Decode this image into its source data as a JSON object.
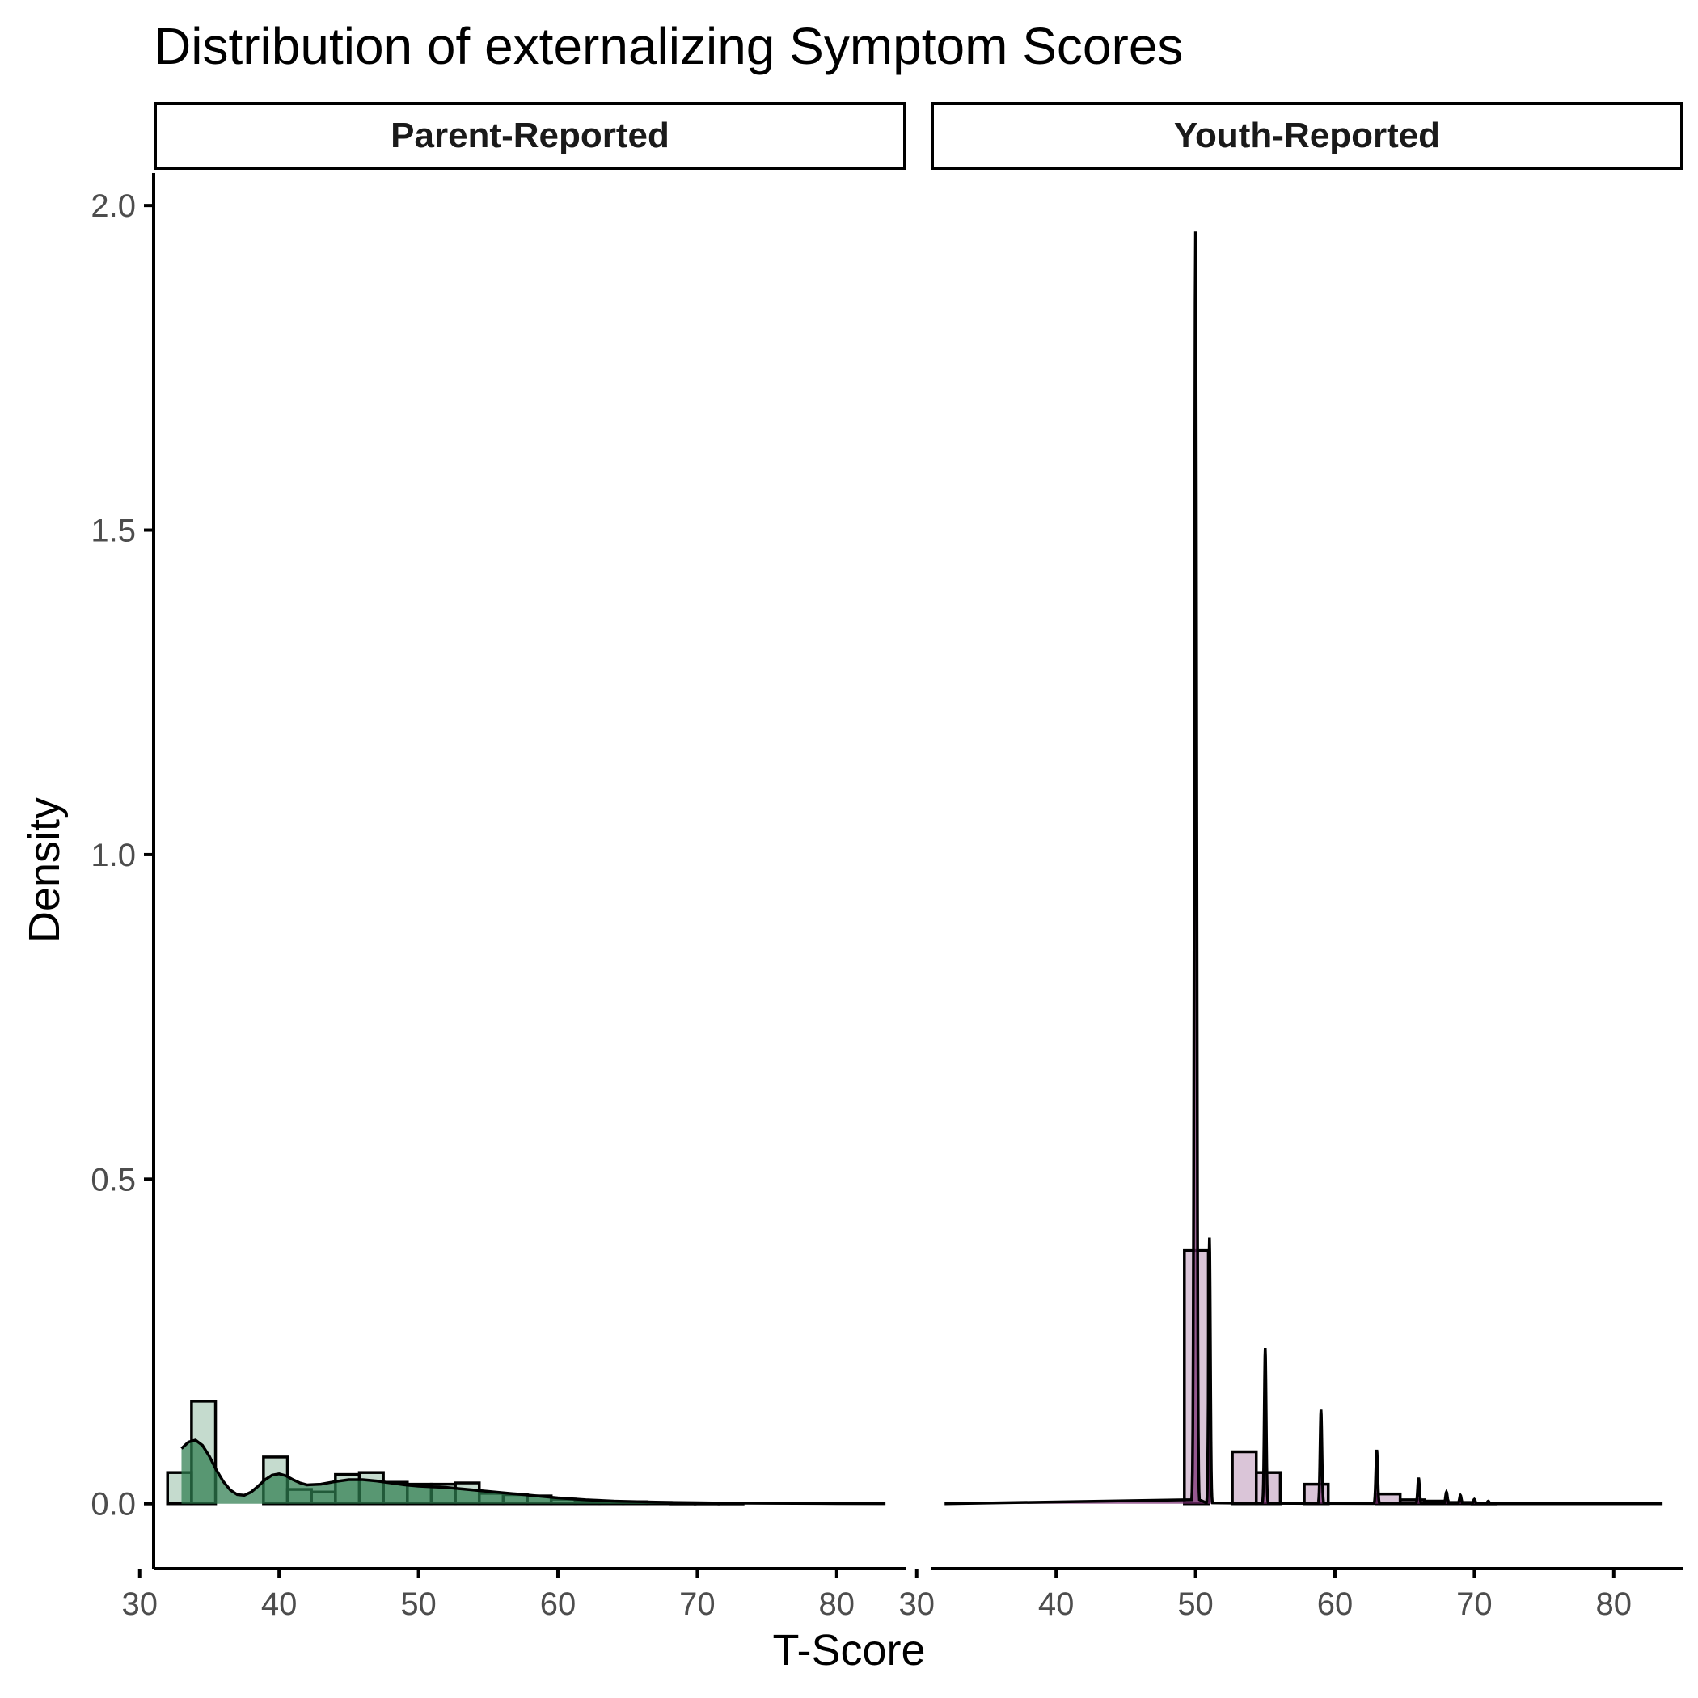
{
  "chart_data": {
    "type": "histogram-density",
    "title": "Distribution of externalizing Symptom Scores",
    "xlabel": "T-Score",
    "ylabel": "Density",
    "xlim": [
      31,
      85
    ],
    "ylim": [
      -0.1,
      2.05
    ],
    "x_ticks": [
      30,
      40,
      50,
      60,
      70,
      80
    ],
    "y_ticks": [
      0.0,
      0.5,
      1.0,
      1.5,
      2.0
    ],
    "y_tick_labels": [
      "0.0",
      "0.5",
      "1.0",
      "1.5",
      "2.0"
    ],
    "grid": false,
    "facets": [
      {
        "label": "Parent-Reported",
        "color": "#2E7D4F",
        "histogram": {
          "bin_width": 1.72,
          "bins": [
            {
              "x0": 32.0,
              "value": 0.048
            },
            {
              "x0": 33.72,
              "value": 0.158
            },
            {
              "x0": 35.44,
              "value": 0.0
            },
            {
              "x0": 37.16,
              "value": 0.0
            },
            {
              "x0": 38.88,
              "value": 0.072
            },
            {
              "x0": 40.6,
              "value": 0.022
            },
            {
              "x0": 42.32,
              "value": 0.018
            },
            {
              "x0": 44.04,
              "value": 0.045
            },
            {
              "x0": 45.76,
              "value": 0.048
            },
            {
              "x0": 47.48,
              "value": 0.033
            },
            {
              "x0": 49.2,
              "value": 0.03
            },
            {
              "x0": 50.92,
              "value": 0.03
            },
            {
              "x0": 52.64,
              "value": 0.032
            },
            {
              "x0": 54.36,
              "value": 0.016
            },
            {
              "x0": 56.08,
              "value": 0.014
            },
            {
              "x0": 57.8,
              "value": 0.012
            },
            {
              "x0": 59.52,
              "value": 0.007
            },
            {
              "x0": 61.24,
              "value": 0.005
            },
            {
              "x0": 62.96,
              "value": 0.003
            },
            {
              "x0": 64.68,
              "value": 0.003
            },
            {
              "x0": 66.4,
              "value": 0.002
            },
            {
              "x0": 68.12,
              "value": 0.001
            },
            {
              "x0": 69.84,
              "value": 0.001
            },
            {
              "x0": 71.56,
              "value": 0.001
            }
          ]
        },
        "density": {
          "x": [
            33,
            33.5,
            34,
            34.5,
            35,
            35.5,
            36,
            36.5,
            37,
            37.5,
            38,
            38.5,
            39,
            39.5,
            40,
            40.5,
            41,
            41.5,
            42,
            43,
            44,
            45,
            46,
            47,
            48,
            49,
            50,
            51,
            52,
            53,
            54,
            55,
            56,
            57,
            58,
            59,
            60,
            62,
            64,
            66,
            68,
            70,
            72,
            75,
            80,
            83.5
          ],
          "y": [
            0.085,
            0.095,
            0.098,
            0.09,
            0.073,
            0.052,
            0.034,
            0.021,
            0.014,
            0.013,
            0.018,
            0.027,
            0.037,
            0.044,
            0.046,
            0.043,
            0.037,
            0.032,
            0.029,
            0.03,
            0.034,
            0.037,
            0.037,
            0.035,
            0.032,
            0.029,
            0.027,
            0.026,
            0.025,
            0.023,
            0.021,
            0.019,
            0.017,
            0.015,
            0.013,
            0.011,
            0.009,
            0.006,
            0.004,
            0.003,
            0.002,
            0.0015,
            0.001,
            0.0007,
            0.0003,
            0.0001
          ]
        }
      },
      {
        "label": "Youth-Reported",
        "color": "#7A2E73",
        "histogram": {
          "bin_width": 1.72,
          "bins": [
            {
              "x0": 49.2,
              "value": 0.39
            },
            {
              "x0": 50.92,
              "value": 0.0
            },
            {
              "x0": 52.64,
              "value": 0.08
            },
            {
              "x0": 54.36,
              "value": 0.048
            },
            {
              "x0": 56.08,
              "value": 0.0
            },
            {
              "x0": 57.8,
              "value": 0.03
            },
            {
              "x0": 59.52,
              "value": 0.0
            },
            {
              "x0": 61.24,
              "value": 0.0
            },
            {
              "x0": 62.96,
              "value": 0.015
            },
            {
              "x0": 64.68,
              "value": 0.006
            },
            {
              "x0": 66.4,
              "value": 0.004
            },
            {
              "x0": 68.12,
              "value": 0.002
            },
            {
              "x0": 69.84,
              "value": 0.001
            }
          ]
        },
        "density": {
          "baseline_x": [
            32,
            83.5
          ],
          "peaks": [
            {
              "x": 50.0,
              "height": 1.96
            },
            {
              "x": 51.0,
              "height": 0.41
            },
            {
              "x": 55.0,
              "height": 0.24
            },
            {
              "x": 59.0,
              "height": 0.145
            },
            {
              "x": 63.0,
              "height": 0.083
            },
            {
              "x": 66.0,
              "height": 0.04
            },
            {
              "x": 68.0,
              "height": 0.018
            },
            {
              "x": 69.0,
              "height": 0.013
            },
            {
              "x": 70.0,
              "height": 0.007
            },
            {
              "x": 71.0,
              "height": 0.004
            }
          ]
        }
      }
    ]
  }
}
